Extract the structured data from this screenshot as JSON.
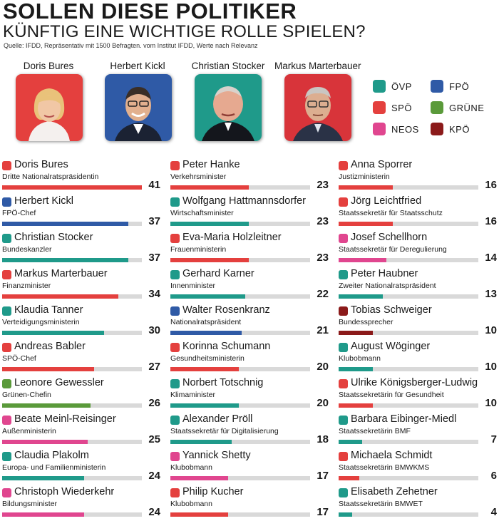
{
  "header": {
    "title": "SOLLEN DIESE POLITIKER",
    "subtitle": "KÜNFTIG EINE WICHTIGE ROLLE SPIELEN?",
    "source": "Quelle: IFDD, Repräsentativ mit 1500 Befragten. vom Institut IFDD, Werte nach Relevanz"
  },
  "portraits": [
    {
      "name": "Doris Bures",
      "bg": "#e4403e"
    },
    {
      "name": "Herbert Kickl",
      "bg": "#2f5aa6"
    },
    {
      "name": "Christian Stocker",
      "bg": "#1f9a8a"
    },
    {
      "name": "Markus Marterbauer",
      "bg": "#d8343a"
    }
  ],
  "legend": [
    {
      "label": "ÖVP",
      "color": "#1f9a8a"
    },
    {
      "label": "FPÖ",
      "color": "#2f5aa6"
    },
    {
      "label": "SPÖ",
      "color": "#e4403e"
    },
    {
      "label": "GRÜNE",
      "color": "#5a9a3a"
    },
    {
      "label": "NEOS",
      "color": "#e0468f"
    },
    {
      "label": "KPÖ",
      "color": "#8b1a1a"
    }
  ],
  "colors": {
    "ÖVP": "#1f9a8a",
    "FPÖ": "#2f5aa6",
    "SPÖ": "#e4403e",
    "GRÜNE": "#5a9a3a",
    "NEOS": "#e0468f",
    "KPÖ": "#8b1a1a",
    "track": "#d9d9d9"
  },
  "chart_data": {
    "type": "bar",
    "max_scale": 41,
    "columns": [
      [
        {
          "name": "Doris Bures",
          "role": "Dritte Nationalratspräsidentin",
          "value": 41,
          "party": "SPÖ"
        },
        {
          "name": "Herbert Kickl",
          "role": "FPÖ-Chef",
          "value": 37,
          "party": "FPÖ"
        },
        {
          "name": "Christian Stocker",
          "role": "Bundeskanzler",
          "value": 37,
          "party": "ÖVP"
        },
        {
          "name": "Markus Marterbauer",
          "role": "Finanzminister",
          "value": 34,
          "party": "SPÖ"
        },
        {
          "name": "Klaudia Tanner",
          "role": "Verteidigungsministerin",
          "value": 30,
          "party": "ÖVP"
        },
        {
          "name": "Andreas Babler",
          "role": "SPÖ-Chef",
          "value": 27,
          "party": "SPÖ"
        },
        {
          "name": "Leonore Gewessler",
          "role": "Grünen-Chefin",
          "value": 26,
          "party": "GRÜNE"
        },
        {
          "name": "Beate Meinl-Reisinger",
          "role": "Außenministerin",
          "value": 25,
          "party": "NEOS"
        },
        {
          "name": "Claudia Plakolm",
          "role": "Europa- und Familienministerin",
          "value": 24,
          "party": "ÖVP"
        },
        {
          "name": "Christoph Wiederkehr",
          "role": "Bildungsminister",
          "value": 24,
          "party": "NEOS"
        }
      ],
      [
        {
          "name": "Peter Hanke",
          "role": "Verkehrsminister",
          "value": 23,
          "party": "SPÖ"
        },
        {
          "name": "Wolfgang Hattmannsdorfer",
          "role": "Wirtschaftsminister",
          "value": 23,
          "party": "ÖVP"
        },
        {
          "name": "Eva-Maria Holzleitner",
          "role": "Frauenministerin",
          "value": 23,
          "party": "SPÖ"
        },
        {
          "name": "Gerhard Karner",
          "role": "Innenminister",
          "value": 22,
          "party": "ÖVP"
        },
        {
          "name": "Walter Rosenkranz",
          "role": "Nationalratspräsident",
          "value": 21,
          "party": "FPÖ"
        },
        {
          "name": "Korinna Schumann",
          "role": "Gesundheitsministerin",
          "value": 20,
          "party": "SPÖ"
        },
        {
          "name": "Norbert Totschnig",
          "role": "Klimaminister",
          "value": 20,
          "party": "ÖVP"
        },
        {
          "name": "Alexander Pröll",
          "role": "Staatssekretär für Digitalisierung",
          "value": 18,
          "party": "ÖVP"
        },
        {
          "name": "Yannick Shetty",
          "role": "Klubobmann",
          "value": 17,
          "party": "NEOS"
        },
        {
          "name": "Philip Kucher",
          "role": "Klubobmann",
          "value": 17,
          "party": "SPÖ"
        }
      ],
      [
        {
          "name": "Anna Sporrer",
          "role": "Justizministerin",
          "value": 16,
          "party": "SPÖ"
        },
        {
          "name": "Jörg Leichtfried",
          "role": "Staatssekretär für Staatsschutz",
          "value": 16,
          "party": "SPÖ"
        },
        {
          "name": "Josef Schellhorn",
          "role": "Staatssekretär für Deregulierung",
          "value": 14,
          "party": "NEOS"
        },
        {
          "name": "Peter Haubner",
          "role": "Zweiter Nationalratspräsident",
          "value": 13,
          "party": "ÖVP"
        },
        {
          "name": "Tobias Schweiger",
          "role": "Bundessprecher",
          "value": 10,
          "party": "KPÖ"
        },
        {
          "name": "August Wöginger",
          "role": "Klubobmann",
          "value": 10,
          "party": "ÖVP"
        },
        {
          "name": "Ulrike Königsberger-Ludwig",
          "role": "Staatssekretärin für Gesundheit",
          "value": 10,
          "party": "SPÖ"
        },
        {
          "name": "Barbara Eibinger-Miedl",
          "role": "Staatssekretärin BMF",
          "value": 7,
          "party": "ÖVP"
        },
        {
          "name": "Michaela Schmidt",
          "role": "Staatssekretärin BMWKMS",
          "value": 6,
          "party": "SPÖ"
        },
        {
          "name": "Elisabeth Zehetner",
          "role": "Staatssekretärin BMWET",
          "value": 4,
          "party": "ÖVP"
        }
      ]
    ]
  }
}
